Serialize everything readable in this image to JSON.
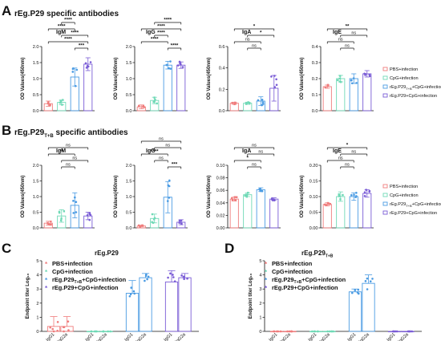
{
  "colors": {
    "pbs": "#f07c7c",
    "cpg": "#6fd9b6",
    "tb": "#4a9be3",
    "p29": "#7a5cd6"
  },
  "panels": {
    "A": {
      "letter": "A",
      "title": "rEg.P29 specific  antibodies"
    },
    "B": {
      "letter": "B",
      "title_main": "rEg.P29",
      "title_sub": "T+B",
      "title_rest": " specific  antibodies"
    },
    "C": {
      "letter": "C",
      "title": "rEg.P29"
    },
    "D": {
      "letter": "D",
      "title_main": "rEg.P29",
      "title_sub": "T+B"
    }
  },
  "legend_top": [
    {
      "label": "PBS+infection",
      "color": "pbs"
    },
    {
      "label": "CpG+infection",
      "color": "cpg"
    },
    {
      "label_main": "rEg.P29",
      "label_sub": "T+B",
      "label_rest": "+CpG+infection",
      "color": "tb"
    },
    {
      "label": "rEg.P29+CpG+infection",
      "color": "p29"
    }
  ],
  "legend_bottom": [
    {
      "label": "PBS+infection",
      "color": "pbs"
    },
    {
      "label": "CpG+infection",
      "color": "cpg"
    },
    {
      "label_main": "rEg.P29",
      "label_sub": "T+B",
      "label_rest": "+CpG+infection",
      "color": "tb"
    },
    {
      "label": "rEg.P29+CpG+infection",
      "color": "p29"
    }
  ],
  "chart_data": [
    {
      "id": "A-IgM",
      "type": "bar",
      "title": "IgM",
      "ylabel": "OD Values(450nm)",
      "ylim": [
        0,
        2.0
      ],
      "yticks": [
        "0.0",
        "0.5",
        "1.0",
        "1.5",
        "2.0"
      ],
      "values": [
        0.22,
        0.26,
        1.05,
        1.45
      ],
      "errors": [
        0.08,
        0.07,
        0.28,
        0.2
      ],
      "sig": [
        {
          "a": 2,
          "b": 3,
          "t": "***"
        },
        {
          "a": 0,
          "b": 3,
          "t": "****"
        },
        {
          "a": 1,
          "b": 3,
          "t": "****"
        },
        {
          "a": 0,
          "b": 2,
          "t": "****"
        },
        {
          "a": 1,
          "b": 2,
          "t": "****"
        }
      ]
    },
    {
      "id": "A-IgG",
      "type": "bar",
      "title": "IgG",
      "ylabel": "OD Values(450nm)",
      "ylim": [
        0,
        2.0
      ],
      "yticks": [
        "0.0",
        "0.5",
        "1.0",
        "1.5",
        "2.0"
      ],
      "values": [
        0.12,
        0.32,
        1.42,
        1.42
      ],
      "errors": [
        0.06,
        0.1,
        0.12,
        0.1
      ],
      "sig": [
        {
          "a": 2,
          "b": 3,
          "t": "****"
        },
        {
          "a": 0,
          "b": 2,
          "t": "****"
        },
        {
          "a": 1,
          "b": 2,
          "t": "****"
        },
        {
          "a": 0,
          "b": 3,
          "t": "****"
        },
        {
          "a": 1,
          "b": 3,
          "t": "****"
        }
      ]
    },
    {
      "id": "A-IgA",
      "type": "bar",
      "title": "IgA",
      "ylabel": "OD Values(450nm)",
      "ylim": [
        0,
        0.6
      ],
      "yticks": [
        "0.0",
        "0.2",
        "0.4",
        "0.6"
      ],
      "values": [
        0.07,
        0.07,
        0.09,
        0.21
      ],
      "errors": [
        0.01,
        0.01,
        0.04,
        0.12
      ],
      "sig": [
        {
          "a": 1,
          "b": 2,
          "t": "ns"
        },
        {
          "a": 0,
          "b": 2,
          "t": "ns"
        },
        {
          "a": 1,
          "b": 3,
          "t": "*"
        },
        {
          "a": 0,
          "b": 3,
          "t": "*"
        }
      ]
    },
    {
      "id": "A-IgE",
      "type": "bar",
      "title": "IgE",
      "ylabel": "OD Values(450nm)",
      "ylim": [
        0,
        0.4
      ],
      "yticks": [
        "0.0",
        "0.1",
        "0.2",
        "0.3",
        "0.4"
      ],
      "values": [
        0.15,
        0.2,
        0.2,
        0.23
      ],
      "errors": [
        0.01,
        0.02,
        0.03,
        0.02
      ],
      "sig": [
        {
          "a": 1,
          "b": 2,
          "t": "ns"
        },
        {
          "a": 0,
          "b": 2,
          "t": "ns"
        },
        {
          "a": 1,
          "b": 3,
          "t": "ns"
        },
        {
          "a": 0,
          "b": 3,
          "t": "**"
        }
      ]
    },
    {
      "id": "B-IgM",
      "type": "bar",
      "title": "IgM",
      "ylabel": "OD Values(450nm)",
      "ylim": [
        0,
        2.0
      ],
      "yticks": [
        "0.0",
        "0.5",
        "1.0",
        "1.5",
        "2.0"
      ],
      "values": [
        0.15,
        0.38,
        0.72,
        0.38
      ],
      "errors": [
        0.06,
        0.2,
        0.4,
        0.12
      ],
      "sig": [
        {
          "a": 1,
          "b": 2,
          "t": "ns"
        },
        {
          "a": 1,
          "b": 3,
          "t": "ns"
        },
        {
          "a": 0,
          "b": 2,
          "t": "**"
        },
        {
          "a": 0,
          "b": 3,
          "t": "ns"
        }
      ]
    },
    {
      "id": "B-IgG",
      "type": "bar",
      "title": "IgG",
      "ylabel": "OD Values(450nm)",
      "ylim": [
        0,
        2.0
      ],
      "yticks": [
        "0.0",
        "0.5",
        "1.0",
        "1.5",
        "2.0"
      ],
      "values": [
        0.06,
        0.3,
        0.98,
        0.18
      ],
      "errors": [
        0.02,
        0.14,
        0.5,
        0.08
      ],
      "sig": [
        {
          "a": 2,
          "b": 3,
          "t": "***"
        },
        {
          "a": 1,
          "b": 2,
          "t": "ns"
        },
        {
          "a": 0,
          "b": 2,
          "t": "****"
        },
        {
          "a": 1,
          "b": 3,
          "t": "ns"
        },
        {
          "a": 0,
          "b": 3,
          "t": "ns"
        }
      ]
    },
    {
      "id": "B-IgA",
      "type": "bar",
      "title": "IgA",
      "ylabel": "OD Values(450nm)",
      "ylim": [
        0,
        0.1
      ],
      "yticks": [
        "0.00",
        "0.02",
        "0.04",
        "0.06",
        "0.08",
        "0.10"
      ],
      "values": [
        0.046,
        0.053,
        0.061,
        0.046
      ],
      "errors": [
        0.003,
        0.003,
        0.003,
        0.002
      ],
      "sig": [
        {
          "a": 1,
          "b": 2,
          "t": "ns"
        },
        {
          "a": 0,
          "b": 2,
          "t": "*"
        },
        {
          "a": 1,
          "b": 3,
          "t": "ns"
        },
        {
          "a": 0,
          "b": 3,
          "t": "ns"
        }
      ]
    },
    {
      "id": "B-IgE",
      "type": "bar",
      "title": "IgE",
      "ylabel": "OD Values(450nm)",
      "ylim": [
        0,
        0.2
      ],
      "yticks": [
        "0.00",
        "0.05",
        "0.10",
        "0.15",
        "0.20"
      ],
      "values": [
        0.075,
        0.1,
        0.1,
        0.11
      ],
      "errors": [
        0.005,
        0.015,
        0.012,
        0.012
      ],
      "sig": [
        {
          "a": 1,
          "b": 2,
          "t": "ns"
        },
        {
          "a": 0,
          "b": 2,
          "t": "ns"
        },
        {
          "a": 1,
          "b": 3,
          "t": "ns"
        },
        {
          "a": 0,
          "b": 3,
          "t": "*"
        }
      ]
    },
    {
      "id": "C",
      "type": "bar",
      "title": "",
      "ylabel": "Endpoint titer Log₁₀",
      "ylim": [
        0,
        5
      ],
      "yticks": [
        "0",
        "1",
        "2",
        "3",
        "4",
        "5"
      ],
      "groups": [
        "PBS+infection",
        "CpG+infection",
        "rEg.P29T+B+CpG+infection",
        "rEg.P29+CpG+infection"
      ],
      "categories": [
        "IgG1",
        "IgG2a"
      ],
      "values": [
        [
          0.35,
          0.35
        ],
        [
          0.0,
          0.0
        ],
        [
          2.7,
          3.8
        ],
        [
          3.5,
          3.8
        ]
      ],
      "errors": [
        [
          0.7,
          0.7
        ],
        [
          0,
          0
        ],
        [
          0.9,
          0.3
        ],
        [
          0.8,
          0.3
        ]
      ]
    },
    {
      "id": "D",
      "type": "bar",
      "title": "",
      "ylabel": "Endpoint titer Log₁₀",
      "ylim": [
        0,
        5
      ],
      "yticks": [
        "0",
        "1",
        "2",
        "3",
        "4",
        "5"
      ],
      "groups": [
        "PBS+infection",
        "CpG+infection",
        "rEg.P29T+B+CpG+infection",
        "rEg.P29+CpG+infection"
      ],
      "categories": [
        "IgG1",
        "IgG2a"
      ],
      "values": [
        [
          0.0,
          0.0
        ],
        [
          0.0,
          0.0
        ],
        [
          2.8,
          3.4
        ],
        [
          0.0,
          0.0
        ]
      ],
      "errors": [
        [
          0,
          0
        ],
        [
          0,
          0
        ],
        [
          0.2,
          0.6
        ],
        [
          0,
          0
        ]
      ]
    }
  ]
}
